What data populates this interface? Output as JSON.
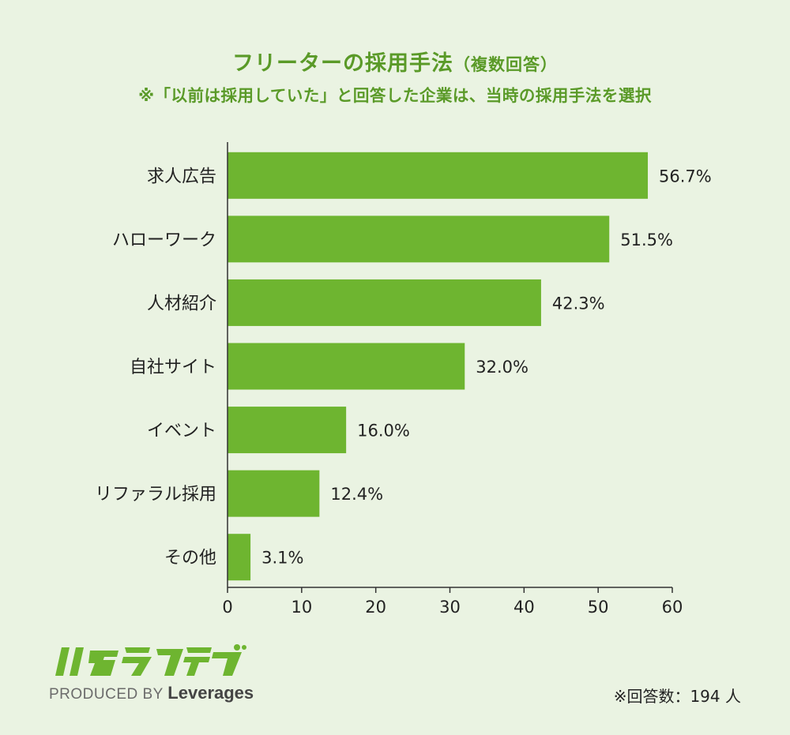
{
  "header": {
    "title": "フリーターの採用手法",
    "title_paren": "（複数回答）",
    "subtitle": "※「以前は採用していた」と回答した企業は、当時の採用手法を選択"
  },
  "chart_data": {
    "type": "bar",
    "orientation": "horizontal",
    "categories": [
      "求人広告",
      "ハローワーク",
      "人材紹介",
      "自社サイト",
      "イベント",
      "リファラル採用",
      "その他"
    ],
    "values": [
      56.7,
      51.5,
      42.3,
      32.0,
      16.0,
      12.4,
      3.1
    ],
    "value_labels": [
      "56.7%",
      "51.5%",
      "42.3%",
      "32.0%",
      "16.0%",
      "12.4%",
      "3.1%"
    ],
    "x_ticks": [
      "0",
      "10",
      "20",
      "30",
      "40",
      "50",
      "60"
    ],
    "xlim": [
      0,
      60
    ],
    "grid": false,
    "bar_color": "#6eb530"
  },
  "footer": {
    "logo_text": "ハタラクティブ",
    "produced_by": "PRODUCED BY",
    "brand": "Leverages",
    "respondents": "※回答数：194 人"
  },
  "colors": {
    "background": "#eaf3e2",
    "accent": "#5a9a28",
    "bar": "#6eb530"
  }
}
